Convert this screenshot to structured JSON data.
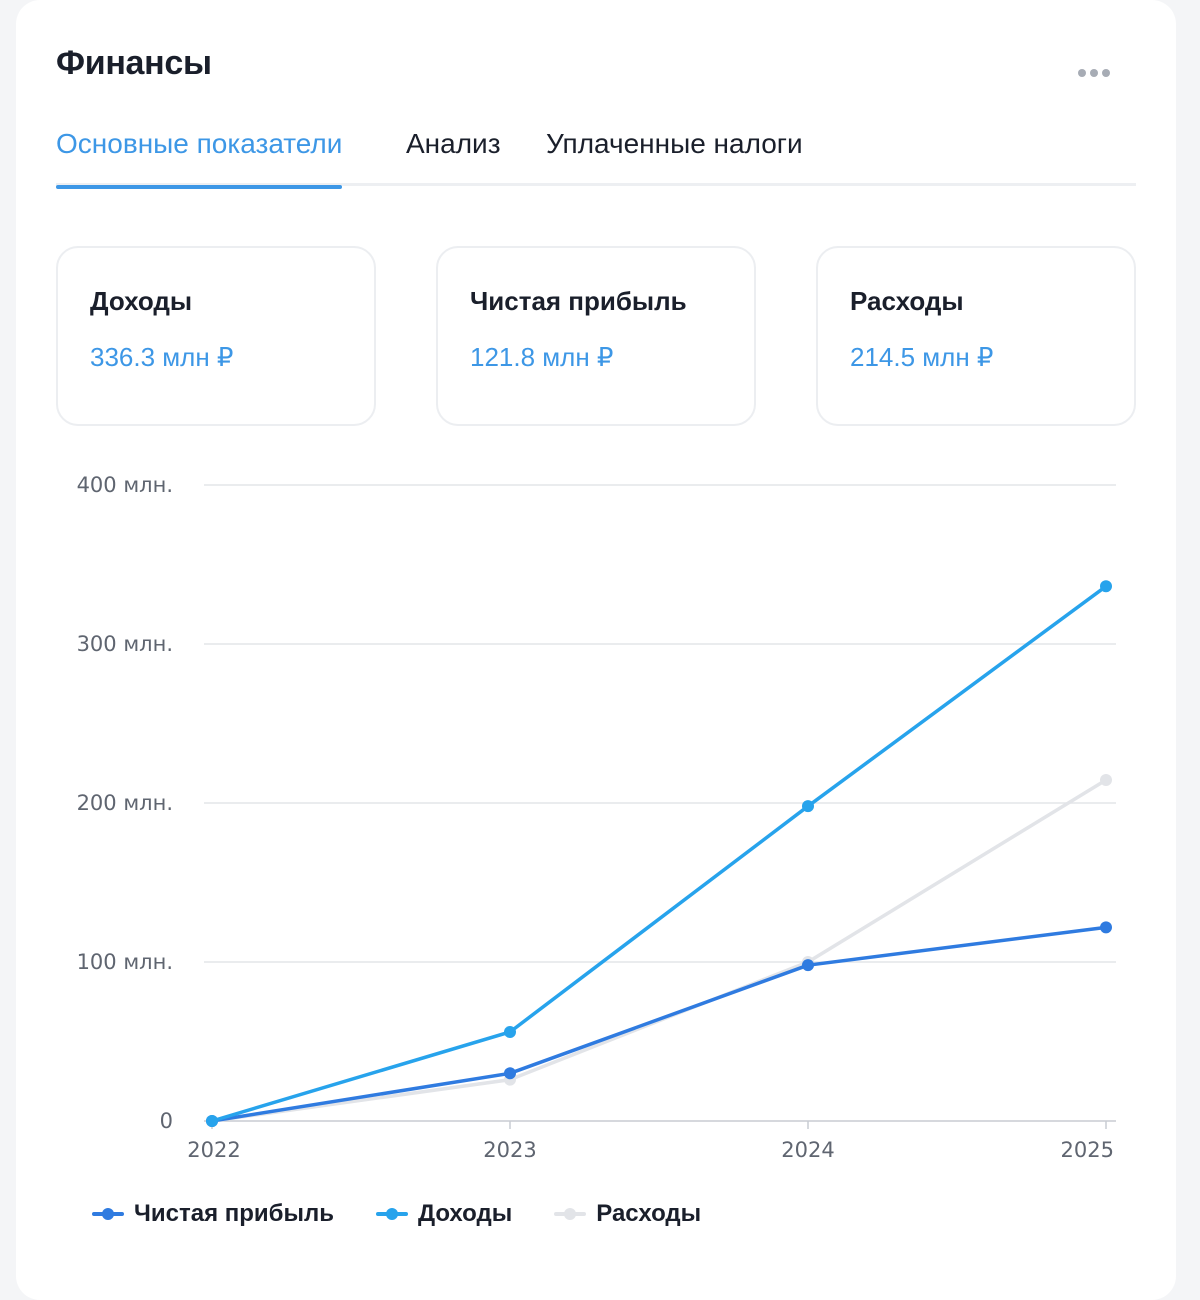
{
  "header": {
    "title": "Финансы",
    "more_icon": "more-horizontal-icon"
  },
  "tabs": [
    {
      "label": "Основные показатели",
      "active": true
    },
    {
      "label": "Анализ",
      "active": false
    },
    {
      "label": "Уплаченные налоги",
      "active": false
    }
  ],
  "kpis": [
    {
      "label": "Доходы",
      "value": "336.3 млн ₽"
    },
    {
      "label": "Чистая прибыль",
      "value": "121.8 млн ₽"
    },
    {
      "label": "Расходы",
      "value": "214.5 млн ₽"
    }
  ],
  "colors": {
    "accent": "#3d97e6",
    "profit": "#2f7be0",
    "income": "#27a3ec",
    "expenses": "#e2e4e8"
  },
  "chart_data": {
    "type": "line",
    "x": [
      "2022",
      "2023",
      "2024",
      "2025"
    ],
    "y_ticks": [
      {
        "value": 0,
        "label": "0"
      },
      {
        "value": 100,
        "label": "100 млн."
      },
      {
        "value": 200,
        "label": "200 млн."
      },
      {
        "value": 300,
        "label": "300 млн."
      },
      {
        "value": 400,
        "label": "400 млн."
      }
    ],
    "ylim": [
      0,
      400
    ],
    "grid": true,
    "legend_position": "bottom-left",
    "series": [
      {
        "name": "Расходы",
        "color": "#e2e4e8",
        "values": [
          0,
          26,
          100,
          214.5
        ]
      },
      {
        "name": "Чистая прибыль",
        "color": "#2f7be0",
        "values": [
          0,
          30,
          98,
          121.8
        ]
      },
      {
        "name": "Доходы",
        "color": "#27a3ec",
        "values": [
          0,
          56,
          198,
          336.3
        ]
      }
    ]
  },
  "legend": [
    {
      "label": "Чистая прибыль",
      "color": "#2f7be0"
    },
    {
      "label": "Доходы",
      "color": "#27a3ec"
    },
    {
      "label": "Расходы",
      "color": "#e2e4e8"
    }
  ]
}
